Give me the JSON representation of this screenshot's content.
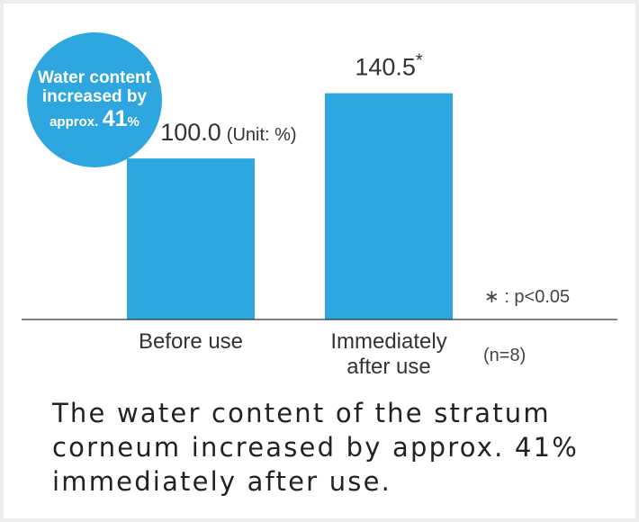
{
  "badge": {
    "line1": "Water content",
    "line2": "increased by",
    "line3_prefix": "approx.",
    "line3_value": "41",
    "line3_unit": "%"
  },
  "chart_data": {
    "type": "bar",
    "categories": [
      "Before use",
      "Immediately after use"
    ],
    "category_lines": [
      [
        "Before use"
      ],
      [
        "Immediately",
        "after use"
      ]
    ],
    "values": [
      100.0,
      140.5
    ],
    "value_labels": [
      "100.0",
      "140.5"
    ],
    "value_marks": [
      "",
      "*"
    ],
    "unit_label": "(Unit: %)",
    "ylim": [
      0,
      190
    ],
    "significance_note": "∗ : p<0.05",
    "sample_note": "(n=8)",
    "bar_color": "#2ea7e0"
  },
  "caption": "The water content of the stratum corneum increased by approx. 41% immediately after use."
}
